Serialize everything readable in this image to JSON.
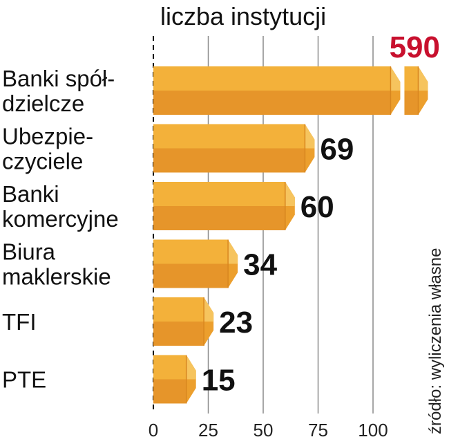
{
  "chart_data": {
    "type": "bar",
    "orientation": "horizontal",
    "title": "liczba instytucji",
    "source": "źródło: wyliczenia własne",
    "xlim": [
      0,
      100
    ],
    "xticks": [
      0,
      25,
      50,
      75,
      100
    ],
    "axis_break_after": 100,
    "categories": [
      [
        "Banki spół-",
        "dzielcze"
      ],
      [
        "Ubezpie-",
        "czyciele"
      ],
      [
        "Banki",
        "komercyjne"
      ],
      [
        "Biura",
        "maklerskie"
      ],
      [
        "TFI"
      ],
      [
        "PTE"
      ]
    ],
    "values": [
      590,
      69,
      60,
      34,
      23,
      15
    ],
    "value_labels": [
      "590",
      "69",
      "60",
      "34",
      "23",
      "15"
    ],
    "highlight_index": 0,
    "colors": {
      "bar_top": "#f3b13a",
      "bar_bottom": "#e6952a",
      "bar_cap": "#f6c45e",
      "bar_cap_dark": "#ec9f2d",
      "highlight_label": "#c8102e",
      "grid": "#8a8a8a",
      "text": "#111111"
    },
    "grid": true,
    "legend": "none"
  }
}
